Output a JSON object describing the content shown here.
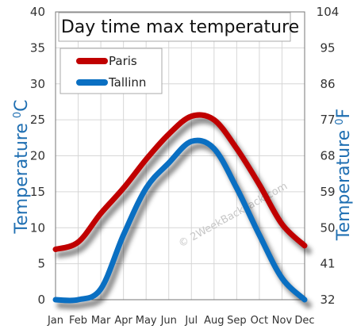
{
  "chart_data": {
    "type": "line",
    "title": "Day time max temperature",
    "ylabel_left": "Temperature",
    "ylabel_left_unit": "C",
    "ylabel_right": "Temperature",
    "ylabel_right_unit": "F",
    "unit_superscript": "0",
    "categories": [
      "Jan",
      "Feb",
      "Mar",
      "Apr",
      "May",
      "Jun",
      "Jul",
      "Aug",
      "Sep",
      "Oct",
      "Nov",
      "Dec"
    ],
    "y_left_ticks": [
      "0",
      "5",
      "10",
      "15",
      "20",
      "25",
      "30",
      "35",
      "40"
    ],
    "y_right_ticks": [
      "32",
      "41",
      "50",
      "59",
      "68",
      "77",
      "86",
      "95",
      "104"
    ],
    "ylim": [
      0,
      40
    ],
    "grid": true,
    "legend_position": "top-left",
    "series": [
      {
        "name": "Paris",
        "color": "#c00000",
        "values": [
          7,
          8,
          12,
          15.5,
          19.5,
          23,
          25.5,
          25,
          21,
          16,
          10.5,
          7.5
        ]
      },
      {
        "name": "Tallinn",
        "color": "#0a6fc2",
        "values": [
          0,
          0,
          1.5,
          9,
          15.5,
          19,
          22,
          21,
          15.5,
          9,
          3,
          0
        ]
      }
    ],
    "watermark": "© 2WeekBackPack.com"
  }
}
